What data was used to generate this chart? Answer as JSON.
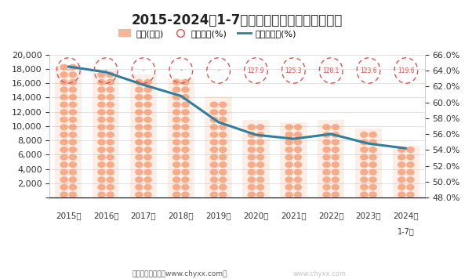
{
  "title": "2015-2024年1-7月云南省工业企业负债统计图",
  "years": [
    "2015年",
    "2016年",
    "2017年",
    "2018年",
    "2019年",
    "2020年",
    "2021年",
    "2022年",
    "2023年",
    "2024年"
  ],
  "year_2024_note": "1-7月",
  "liabilities": [
    18600,
    17800,
    17200,
    16700,
    14200,
    10900,
    10500,
    10900,
    9700,
    7200
  ],
  "equity_ratio_labels": [
    "-",
    "-",
    "-",
    "-",
    "-",
    "127.9",
    "125.3",
    "128.1",
    "123.6",
    "119.6"
  ],
  "asset_liability_ratio": [
    64.5,
    63.8,
    62.2,
    60.8,
    57.5,
    55.9,
    55.4,
    56.0,
    54.8,
    54.2
  ],
  "left_ylim": [
    0,
    20000
  ],
  "left_yticks": [
    0,
    2000,
    4000,
    6000,
    8000,
    10000,
    12000,
    14000,
    16000,
    18000,
    20000
  ],
  "right_ylim": [
    48.0,
    66.0
  ],
  "right_yticks": [
    48.0,
    50.0,
    52.0,
    54.0,
    56.0,
    58.0,
    60.0,
    62.0,
    64.0,
    66.0
  ],
  "bar_fill_color": "#F5956A",
  "bar_fill_alpha": 0.35,
  "bar_oval_color": "#F5956A",
  "bar_oval_alpha": 0.75,
  "circle_edge_color": "#E05050",
  "line_color": "#2E7F9F",
  "bg_color": "#FFFFFF",
  "legend_labels": [
    "负债(亿元)",
    "产权比率(%)",
    "资产负债率(%)"
  ],
  "subtitle_note": "制图：智研咨询（www.chyxx.com）",
  "watermark": "www.chyxx.com",
  "font_family": "SimHei"
}
